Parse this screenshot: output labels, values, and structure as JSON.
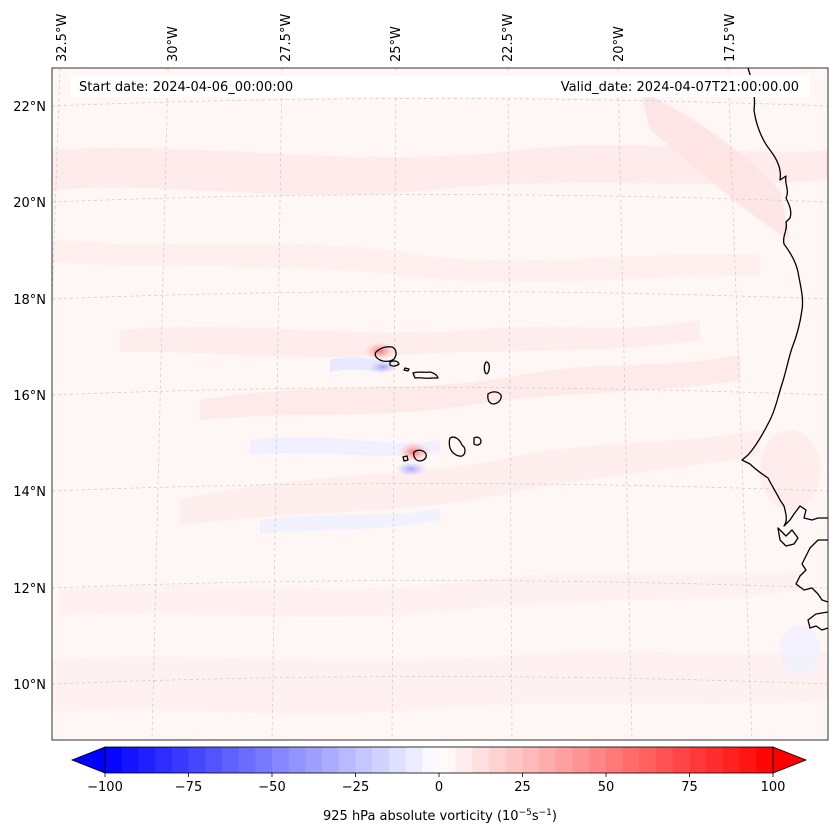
{
  "header": {
    "start_date": "Start date: 2024-04-06_00:00:00",
    "valid_date": "Valid_date: 2024-04-07T21:00:00.00"
  },
  "lon_labels": [
    "32.5°W",
    "30°W",
    "27.5°W",
    "25°W",
    "22.5°W",
    "20°W",
    "17.5°W"
  ],
  "lat_labels": [
    "22°N",
    "20°N",
    "18°N",
    "16°N",
    "14°N",
    "12°N",
    "10°N"
  ],
  "colorbar": {
    "label": "925 hPa absolute vorticity (10",
    "label_exp1": "−5",
    "label_mid": "s",
    "label_exp2": "−1",
    "label_end": ")",
    "ticks": [
      "−100",
      "−75",
      "−50",
      "−25",
      "0",
      "25",
      "50",
      "75",
      "100"
    ],
    "min": -100,
    "max": 100,
    "colors": {
      "negative": "#0000ff",
      "zero": "#ffffff",
      "positive": "#ff0000"
    }
  }
}
